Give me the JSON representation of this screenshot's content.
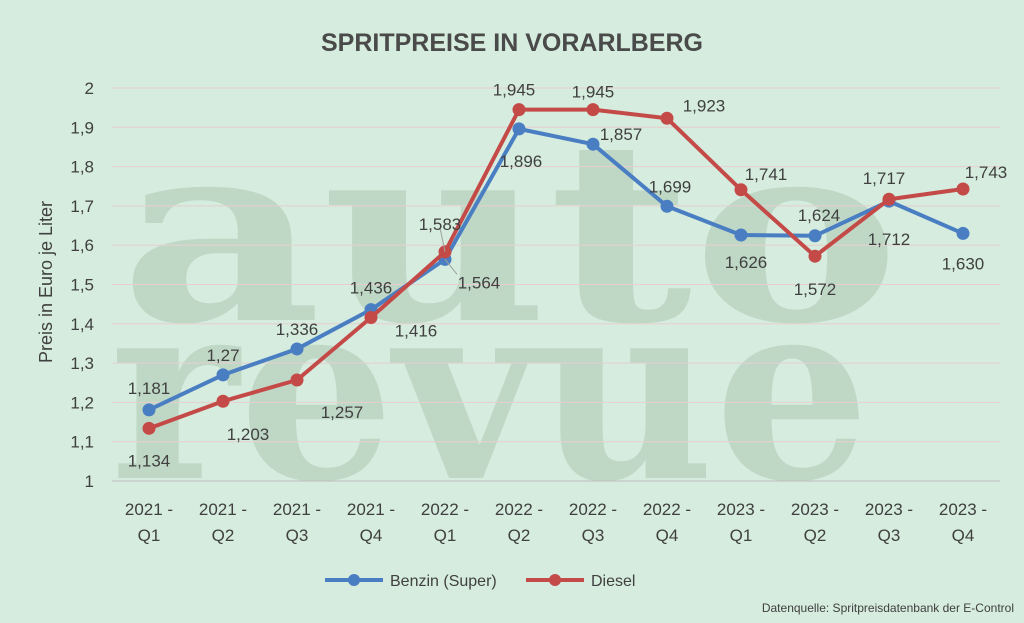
{
  "chart_data": {
    "type": "line",
    "title": "SPRITPREISE IN VORARLBERG",
    "ylabel": "Preis in Euro je Liter",
    "xlabel": "",
    "ylim": [
      1,
      2
    ],
    "yticks": [
      1,
      1.1,
      1.2,
      1.3,
      1.4,
      1.5,
      1.6,
      1.7,
      1.8,
      1.9,
      2
    ],
    "ytick_labels": [
      "1",
      "1,1",
      "1,2",
      "1,3",
      "1,4",
      "1,5",
      "1,6",
      "1,7",
      "1,8",
      "1,9",
      "2"
    ],
    "categories": [
      [
        "2021 -",
        "Q1"
      ],
      [
        "2021 -",
        "Q2"
      ],
      [
        "2021 -",
        "Q3"
      ],
      [
        "2021 -",
        "Q4"
      ],
      [
        "2022 -",
        "Q1"
      ],
      [
        "2022 -",
        "Q2"
      ],
      [
        "2022 -",
        "Q3"
      ],
      [
        "2022 -",
        "Q4"
      ],
      [
        "2023 -",
        "Q1"
      ],
      [
        "2023 -",
        "Q2"
      ],
      [
        "2023 -",
        "Q3"
      ],
      [
        "2023 -",
        "Q4"
      ]
    ],
    "grid": true,
    "legend_position": "bottom",
    "series": [
      {
        "name": "Benzin (Super)",
        "color": "#4a7ec2",
        "values": [
          1.181,
          1.27,
          1.336,
          1.436,
          1.564,
          1.896,
          1.857,
          1.699,
          1.626,
          1.624,
          1.712,
          1.63
        ],
        "labels": [
          "1,181",
          "1,27",
          "1,336",
          "1,436",
          "1,564",
          "1,896",
          "1,857",
          "1,699",
          "1,626",
          "1,624",
          "1,712",
          "1,630"
        ]
      },
      {
        "name": "Diesel",
        "color": "#c44a48",
        "values": [
          1.134,
          1.203,
          1.257,
          1.416,
          1.583,
          1.945,
          1.945,
          1.923,
          1.741,
          1.572,
          1.717,
          1.743
        ],
        "labels": [
          "1,134",
          "1,203",
          "1,257",
          "1,416",
          "1,583",
          "1,945",
          "1,945",
          "1,923",
          "1,741",
          "1,572",
          "1,717",
          "1,743"
        ]
      }
    ]
  },
  "watermark": {
    "line1": "auto",
    "line2": "revue"
  },
  "source": "Datenquelle: Spritpreisdatenbank der E-Control"
}
